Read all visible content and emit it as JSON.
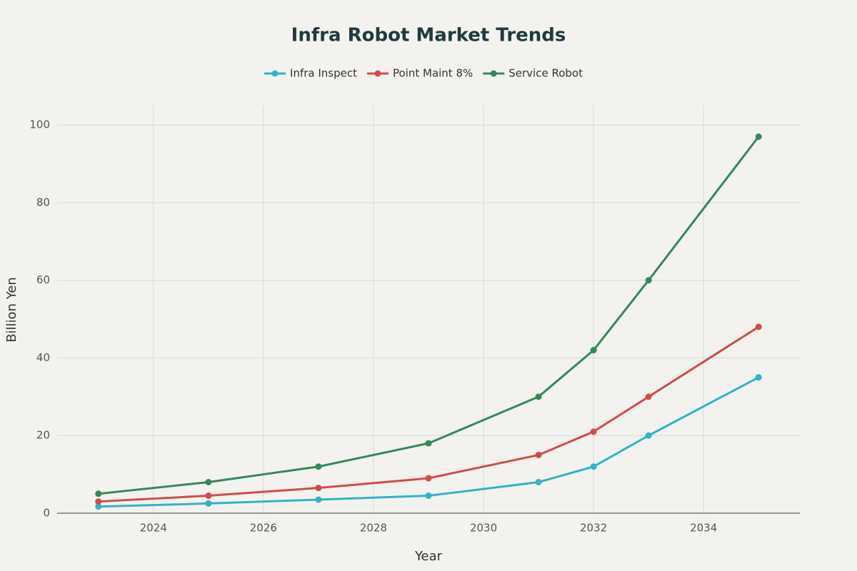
{
  "chart_data": {
    "type": "line",
    "title": "Infra Robot Market Trends",
    "x_label": "Year",
    "y_label": "Billion Yen",
    "x": [
      2023,
      2025,
      2027,
      2029,
      2031,
      2032,
      2033,
      2035
    ],
    "series": [
      {
        "name": "Infra Inspect",
        "color": "#2fb4c8",
        "values": [
          1.7,
          2.5,
          3.5,
          4.5,
          8,
          12,
          20,
          35
        ]
      },
      {
        "name": "Point Maint 8%",
        "color": "#d24b4b",
        "values": [
          3,
          4.5,
          6.5,
          9,
          15,
          21,
          30,
          48
        ]
      },
      {
        "name": "Service Robot",
        "color": "#33895a",
        "values": [
          5,
          8,
          12,
          18,
          30,
          42,
          60,
          97
        ]
      }
    ],
    "xlim": [
      2022.25,
      2035.75
    ],
    "ylim": [
      0,
      105
    ],
    "xticks": [
      2024,
      2026,
      2028,
      2030,
      2032,
      2034
    ],
    "yticks": [
      0,
      20,
      40,
      60,
      80,
      100
    ],
    "grid": true,
    "legend": "top"
  }
}
